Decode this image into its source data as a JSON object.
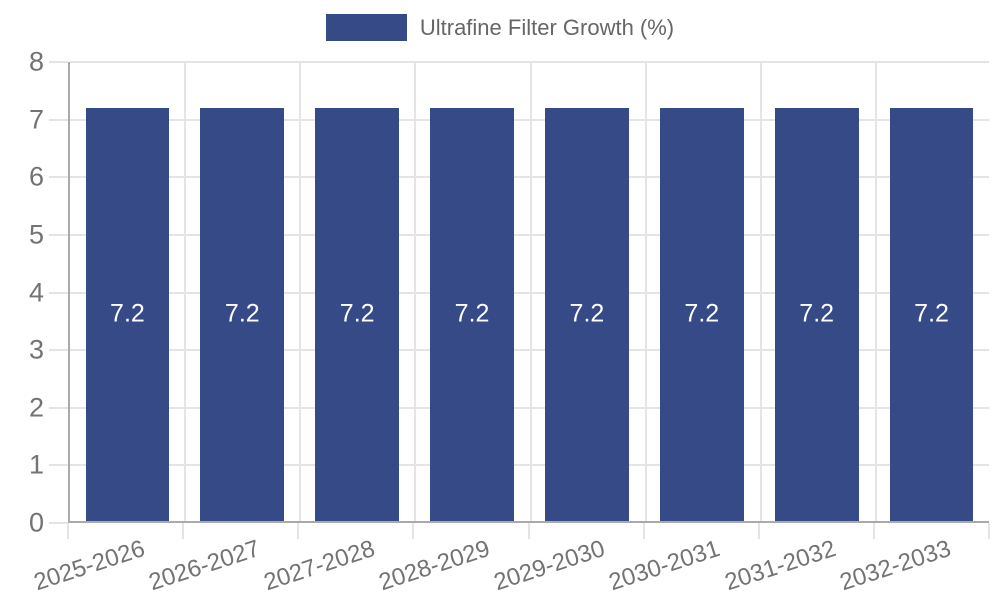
{
  "chart_data": {
    "type": "bar",
    "title": "",
    "legend_label": "Ultrafine Filter Growth (%)",
    "legend_position": "top-center",
    "categories": [
      "2025-2026",
      "2026-2027",
      "2027-2028",
      "2028-2029",
      "2029-2030",
      "2030-2031",
      "2031-2032",
      "2032-2033"
    ],
    "values": [
      7.2,
      7.2,
      7.2,
      7.2,
      7.2,
      7.2,
      7.2,
      7.2
    ],
    "bar_labels": [
      "7.2",
      "7.2",
      "7.2",
      "7.2",
      "7.2",
      "7.2",
      "7.2",
      "7.2"
    ],
    "xlabel": "",
    "ylabel": "",
    "ylim": [
      0,
      8
    ],
    "ytick_step": 1,
    "ytick_labels": [
      "0",
      "1",
      "2",
      "3",
      "4",
      "5",
      "6",
      "7",
      "8"
    ],
    "grid": true,
    "x_tick_angle_deg": -18,
    "colors": {
      "bar": "#374a88",
      "grid": "#e4e4e4",
      "axis": "#aaaaaa",
      "tick_label": "#737373",
      "legend_text": "#666666",
      "bar_label": "#ffffff",
      "background": "#ffffff"
    }
  }
}
